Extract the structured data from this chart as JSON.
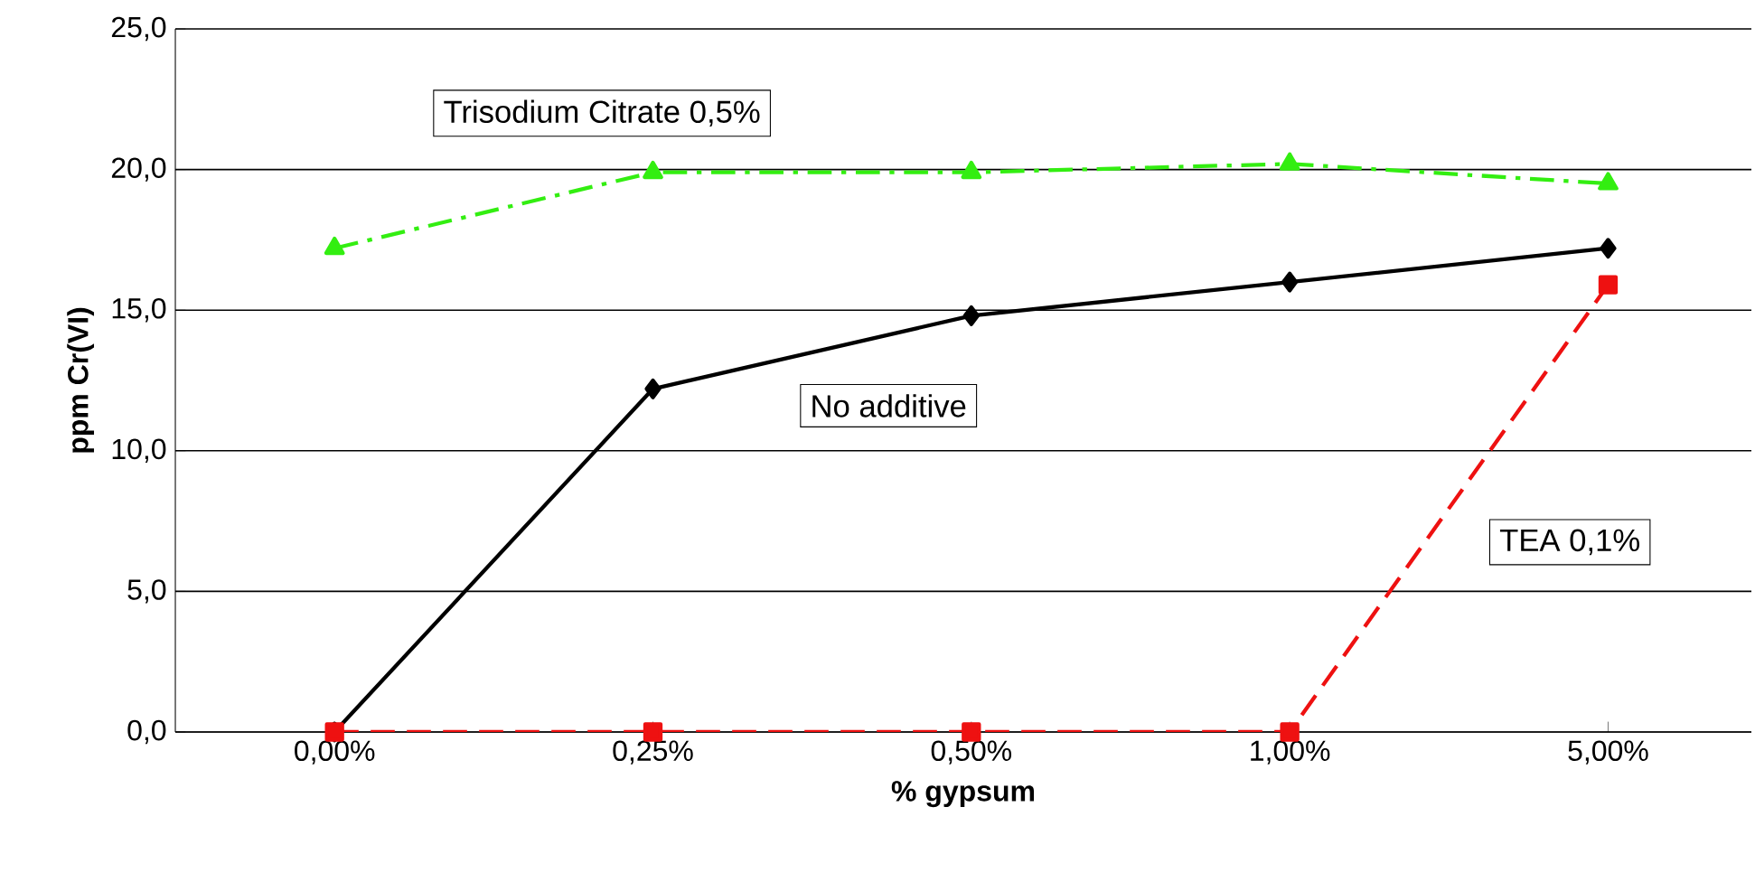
{
  "chart_data": {
    "type": "line",
    "xlabel": "% gypsum",
    "ylabel": "ppm Cr(VI)",
    "categories": [
      "0,00%",
      "0,25%",
      "0,50%",
      "1,00%",
      "5,00%"
    ],
    "ylim": [
      0,
      25
    ],
    "yticks": [
      {
        "value": 0,
        "label": "0,0"
      },
      {
        "value": 5,
        "label": "5,0"
      },
      {
        "value": 10,
        "label": "10,0"
      },
      {
        "value": 15,
        "label": "15,0"
      },
      {
        "value": 20,
        "label": "20,0"
      },
      {
        "value": 25,
        "label": "25,0"
      }
    ],
    "grid": "y",
    "series": [
      {
        "name": "Trisodium Citrate 0,5%",
        "color": "#33ee11",
        "marker": "triangle",
        "line_style": "dashdot",
        "values": [
          17.2,
          19.9,
          19.9,
          20.2,
          19.5
        ]
      },
      {
        "name": "No additive",
        "color": "#000000",
        "marker": "diamond",
        "line_style": "solid",
        "values": [
          0,
          12.2,
          14.8,
          16.0,
          17.2
        ]
      },
      {
        "name": "TEA 0,1%",
        "color": "#ee1111",
        "marker": "square",
        "line_style": "dashed",
        "values": [
          0,
          0,
          0,
          0,
          15.9
        ]
      }
    ]
  }
}
